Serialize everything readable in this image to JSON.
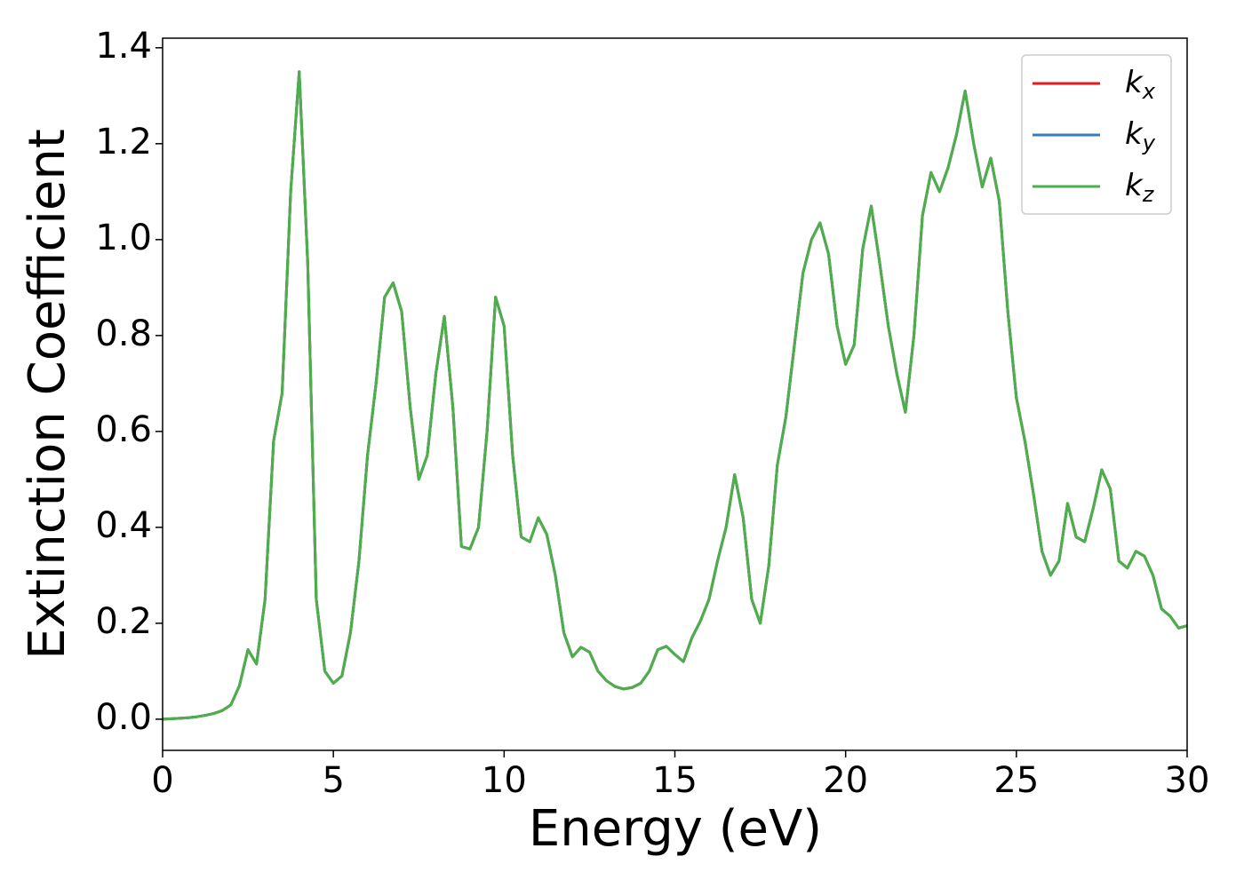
{
  "chart_data": {
    "type": "line",
    "xlabel": "Energy (eV)",
    "ylabel": "Extinction Coefficient",
    "xlim": [
      0,
      30
    ],
    "ylim": [
      -0.065,
      1.42
    ],
    "xticks": [
      0,
      5,
      10,
      15,
      20,
      25,
      30
    ],
    "yticks": [
      {
        "value": 0,
        "label": "0.0"
      },
      {
        "value": 0.2,
        "label": "0.2"
      },
      {
        "value": 0.4,
        "label": "0.4"
      },
      {
        "value": 0.6,
        "label": "0.6"
      },
      {
        "value": 0.8,
        "label": "0.8"
      },
      {
        "value": 1.0,
        "label": "1.0"
      },
      {
        "value": 1.2,
        "label": "1.2"
      },
      {
        "value": 1.4,
        "label": "1.4"
      }
    ],
    "legend": "upper right",
    "grid": false,
    "x": [
      0,
      0.25,
      0.5,
      0.75,
      1,
      1.25,
      1.5,
      1.75,
      2,
      2.25,
      2.5,
      2.75,
      3,
      3.25,
      3.5,
      3.75,
      4,
      4.25,
      4.5,
      4.75,
      5,
      5.25,
      5.5,
      5.75,
      6,
      6.25,
      6.5,
      6.75,
      7,
      7.25,
      7.5,
      7.75,
      8,
      8.25,
      8.5,
      8.75,
      9,
      9.25,
      9.5,
      9.75,
      10,
      10.25,
      10.5,
      10.75,
      11,
      11.25,
      11.5,
      11.75,
      12,
      12.25,
      12.5,
      12.75,
      13,
      13.25,
      13.5,
      13.75,
      14,
      14.25,
      14.5,
      14.75,
      15,
      15.25,
      15.5,
      15.75,
      16,
      16.25,
      16.5,
      16.75,
      17,
      17.25,
      17.5,
      17.75,
      18,
      18.25,
      18.5,
      18.75,
      19,
      19.25,
      19.5,
      19.75,
      20,
      20.25,
      20.5,
      20.75,
      21,
      21.25,
      21.5,
      21.75,
      22,
      22.25,
      22.5,
      22.75,
      23,
      23.25,
      23.5,
      23.75,
      24,
      24.25,
      24.5,
      24.75,
      25,
      25.25,
      25.5,
      25.75,
      26,
      26.25,
      26.5,
      26.75,
      27,
      27.25,
      27.5,
      27.75,
      28,
      28.25,
      28.5,
      28.75,
      29,
      29.25,
      29.5,
      29.75,
      30
    ],
    "series": [
      {
        "name": "kx",
        "color": "#e41a1c",
        "values": [
          0,
          0.001,
          0.002,
          0.003,
          0.005,
          0.008,
          0.012,
          0.018,
          0.03,
          0.07,
          0.145,
          0.115,
          0.25,
          0.58,
          0.68,
          1.1,
          1.35,
          0.95,
          0.25,
          0.1,
          0.075,
          0.09,
          0.18,
          0.33,
          0.55,
          0.7,
          0.88,
          0.91,
          0.85,
          0.65,
          0.5,
          0.55,
          0.72,
          0.84,
          0.65,
          0.36,
          0.355,
          0.4,
          0.6,
          0.88,
          0.82,
          0.55,
          0.38,
          0.37,
          0.42,
          0.385,
          0.3,
          0.18,
          0.13,
          0.15,
          0.14,
          0.1,
          0.08,
          0.068,
          0.063,
          0.066,
          0.075,
          0.1,
          0.145,
          0.152,
          0.135,
          0.12,
          0.17,
          0.205,
          0.25,
          0.33,
          0.4,
          0.51,
          0.42,
          0.25,
          0.2,
          0.32,
          0.53,
          0.63,
          0.78,
          0.93,
          1.0,
          1.035,
          0.97,
          0.82,
          0.74,
          0.78,
          0.98,
          1.07,
          0.95,
          0.82,
          0.72,
          0.64,
          0.8,
          1.05,
          1.14,
          1.1,
          1.15,
          1.22,
          1.31,
          1.2,
          1.11,
          1.17,
          1.08,
          0.85,
          0.67,
          0.58,
          0.47,
          0.35,
          0.3,
          0.33,
          0.45,
          0.38,
          0.37,
          0.44,
          0.52,
          0.48,
          0.33,
          0.315,
          0.35,
          0.34,
          0.3,
          0.23,
          0.215,
          0.19,
          0.195
        ]
      },
      {
        "name": "ky",
        "color": "#377eb8",
        "values": [
          0,
          0.001,
          0.002,
          0.003,
          0.005,
          0.008,
          0.012,
          0.018,
          0.03,
          0.07,
          0.145,
          0.115,
          0.25,
          0.58,
          0.68,
          1.1,
          1.35,
          0.95,
          0.25,
          0.1,
          0.075,
          0.09,
          0.18,
          0.33,
          0.55,
          0.7,
          0.88,
          0.91,
          0.85,
          0.65,
          0.5,
          0.55,
          0.72,
          0.84,
          0.65,
          0.36,
          0.355,
          0.4,
          0.6,
          0.88,
          0.82,
          0.55,
          0.38,
          0.37,
          0.42,
          0.385,
          0.3,
          0.18,
          0.13,
          0.15,
          0.14,
          0.1,
          0.08,
          0.068,
          0.063,
          0.066,
          0.075,
          0.1,
          0.145,
          0.152,
          0.135,
          0.12,
          0.17,
          0.205,
          0.25,
          0.33,
          0.4,
          0.51,
          0.42,
          0.25,
          0.2,
          0.32,
          0.53,
          0.63,
          0.78,
          0.93,
          1.0,
          1.035,
          0.97,
          0.82,
          0.74,
          0.78,
          0.98,
          1.07,
          0.95,
          0.82,
          0.72,
          0.64,
          0.8,
          1.05,
          1.14,
          1.1,
          1.15,
          1.22,
          1.31,
          1.2,
          1.11,
          1.17,
          1.08,
          0.85,
          0.67,
          0.58,
          0.47,
          0.35,
          0.3,
          0.33,
          0.45,
          0.38,
          0.37,
          0.44,
          0.52,
          0.48,
          0.33,
          0.315,
          0.35,
          0.34,
          0.3,
          0.23,
          0.215,
          0.19,
          0.195
        ]
      },
      {
        "name": "kz",
        "color": "#4daf4a",
        "values": [
          0,
          0.001,
          0.002,
          0.003,
          0.005,
          0.008,
          0.012,
          0.018,
          0.03,
          0.07,
          0.145,
          0.115,
          0.25,
          0.58,
          0.68,
          1.1,
          1.35,
          0.95,
          0.25,
          0.1,
          0.075,
          0.09,
          0.18,
          0.33,
          0.55,
          0.7,
          0.88,
          0.91,
          0.85,
          0.65,
          0.5,
          0.55,
          0.72,
          0.84,
          0.65,
          0.36,
          0.355,
          0.4,
          0.6,
          0.88,
          0.82,
          0.55,
          0.38,
          0.37,
          0.42,
          0.385,
          0.3,
          0.18,
          0.13,
          0.15,
          0.14,
          0.1,
          0.08,
          0.068,
          0.063,
          0.066,
          0.075,
          0.1,
          0.145,
          0.152,
          0.135,
          0.12,
          0.17,
          0.205,
          0.25,
          0.33,
          0.4,
          0.51,
          0.42,
          0.25,
          0.2,
          0.32,
          0.53,
          0.63,
          0.78,
          0.93,
          1.0,
          1.035,
          0.97,
          0.82,
          0.74,
          0.78,
          0.98,
          1.07,
          0.95,
          0.82,
          0.72,
          0.64,
          0.8,
          1.05,
          1.14,
          1.1,
          1.15,
          1.22,
          1.31,
          1.2,
          1.11,
          1.17,
          1.08,
          0.85,
          0.67,
          0.58,
          0.47,
          0.35,
          0.3,
          0.33,
          0.45,
          0.38,
          0.37,
          0.44,
          0.52,
          0.48,
          0.33,
          0.315,
          0.35,
          0.34,
          0.3,
          0.23,
          0.215,
          0.19,
          0.195
        ]
      }
    ]
  }
}
